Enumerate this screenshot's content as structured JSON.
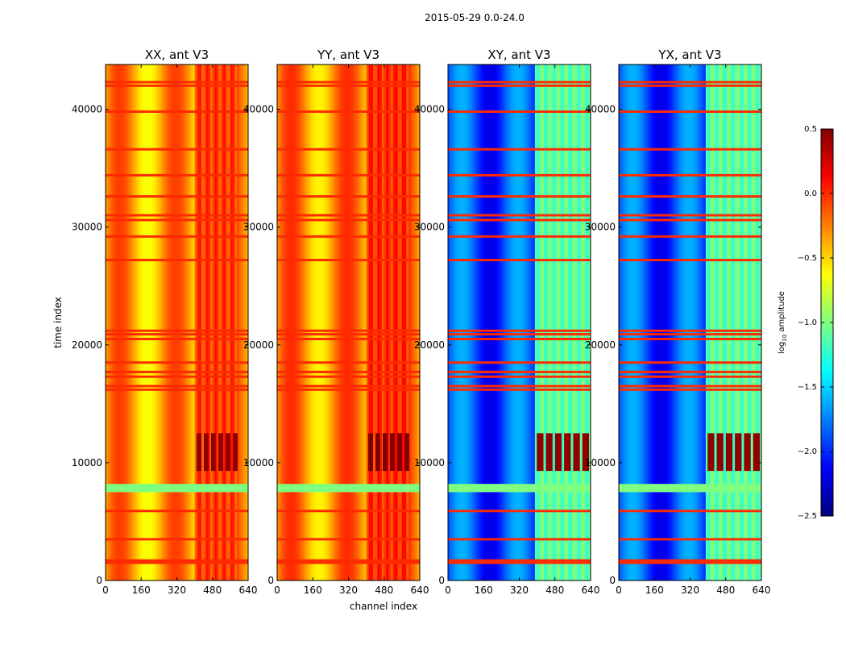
{
  "figure": {
    "suptitle": "2015-05-29 0.0-24.0",
    "xlabel": "channel index",
    "ylabel": "time index",
    "colorbar_label": "log10 amplitude",
    "colorbar_label_main": "log",
    "colorbar_label_sub": "10",
    "colorbar_label_rest": " amplitude"
  },
  "chart_data": {
    "type": "heatmap",
    "colormap": "jet",
    "xlim": [
      0,
      640
    ],
    "ylim": [
      0,
      43800
    ],
    "x_ticks": [
      0,
      160,
      320,
      480,
      640
    ],
    "y_ticks": [
      0,
      10000,
      20000,
      30000,
      40000
    ],
    "clim": [
      -2.5,
      0.5
    ],
    "colorbar_ticks": [
      0.5,
      0.0,
      -0.5,
      -1.0,
      -1.5,
      -2.0,
      -2.5
    ],
    "colorbar_tick_labels": [
      "0.5",
      "0.0",
      "−0.5",
      "−1.0",
      "−1.5",
      "−2.0",
      "−2.5"
    ],
    "panels": [
      {
        "title": "XX, ant V3",
        "base_level": -0.35,
        "band_level": -0.05,
        "band_x": [
          405,
          600
        ],
        "band_hot": 0.45
      },
      {
        "title": "YY, ant V3",
        "base_level": -0.3,
        "band_level": 0.0,
        "band_x": [
          405,
          600
        ],
        "band_hot": 0.5
      },
      {
        "title": "XY, ant V3",
        "base_level": -1.9,
        "band_level": -1.1,
        "band_x": [
          395,
          640
        ],
        "band_hot": 0.45
      },
      {
        "title": "YX, ant V3",
        "base_level": -1.9,
        "band_level": -1.1,
        "band_x": [
          395,
          640
        ],
        "band_hot": 0.45
      }
    ],
    "green_band_rows": [
      7500,
      8200
    ],
    "hot_band_rows": [
      9300,
      12500
    ],
    "rfi_rows": [
      1500,
      1700,
      3500,
      5900,
      16200,
      16500,
      17300,
      17700,
      18500,
      20500,
      20900,
      21200,
      27200,
      29200,
      30600,
      31000,
      32600,
      34400,
      36600,
      39800,
      42000,
      42300
    ]
  }
}
